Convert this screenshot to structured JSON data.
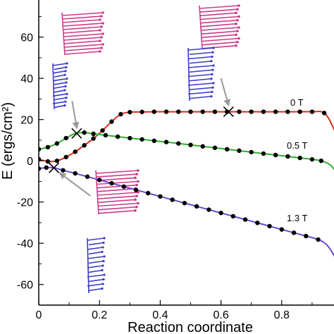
{
  "chart_data": {
    "type": "line",
    "xlabel": "Reaction coordinate",
    "ylabel": "E (ergs/cm²)",
    "xlim": [
      0,
      1.0
    ],
    "ylim": [
      -70,
      78
    ],
    "x_ticks": [
      "0",
      "0.2",
      "0.4",
      "0.6",
      "0.8"
    ],
    "y_ticks": [
      "-60",
      "-40",
      "-20",
      "0",
      "20",
      "40",
      "60"
    ],
    "grid": false,
    "legend": "inline labels",
    "series": [
      {
        "name": "0 T",
        "color": "#e0281e",
        "points": [
          [
            0.0,
            0.8
          ],
          [
            0.03,
            -0.3
          ],
          [
            0.06,
            0.0
          ],
          [
            0.09,
            1.8
          ],
          [
            0.12,
            4.4
          ],
          [
            0.15,
            7.5
          ],
          [
            0.18,
            10.8
          ],
          [
            0.21,
            14.7
          ],
          [
            0.24,
            19.0
          ],
          [
            0.27,
            22.6
          ],
          [
            0.3,
            23.6
          ],
          [
            0.34,
            23.7
          ],
          [
            0.38,
            23.8
          ],
          [
            0.42,
            23.8
          ],
          [
            0.46,
            23.8
          ],
          [
            0.5,
            23.8
          ],
          [
            0.54,
            23.8
          ],
          [
            0.58,
            23.8
          ],
          [
            0.62,
            23.8
          ],
          [
            0.66,
            23.8
          ],
          [
            0.7,
            23.8
          ],
          [
            0.74,
            23.8
          ],
          [
            0.78,
            23.8
          ],
          [
            0.82,
            23.8
          ],
          [
            0.86,
            23.8
          ],
          [
            0.9,
            23.8
          ],
          [
            0.94,
            23.2
          ],
          [
            0.97,
            16.0
          ],
          [
            1.0,
            5.0
          ]
        ],
        "markers_x": [
          0.0,
          0.03,
          0.06,
          0.09,
          0.12,
          0.15,
          0.18,
          0.21,
          0.24,
          0.27,
          0.3,
          0.34,
          0.38,
          0.42,
          0.46,
          0.5,
          0.54,
          0.58,
          0.62,
          0.66,
          0.7,
          0.74,
          0.78,
          0.82,
          0.86,
          0.9,
          0.94
        ]
      },
      {
        "name": "0.5 T",
        "color": "#2fae2f",
        "points": [
          [
            0.0,
            5.6
          ],
          [
            0.03,
            6.6
          ],
          [
            0.06,
            8.4
          ],
          [
            0.09,
            11.0
          ],
          [
            0.12,
            13.3
          ],
          [
            0.15,
            13.7
          ],
          [
            0.18,
            13.1
          ],
          [
            0.22,
            12.4
          ],
          [
            0.26,
            11.7
          ],
          [
            0.3,
            11.0
          ],
          [
            0.34,
            10.4
          ],
          [
            0.38,
            9.7
          ],
          [
            0.42,
            9.1
          ],
          [
            0.46,
            8.4
          ],
          [
            0.5,
            7.7
          ],
          [
            0.54,
            7.0
          ],
          [
            0.58,
            6.3
          ],
          [
            0.62,
            5.6
          ],
          [
            0.66,
            4.9
          ],
          [
            0.7,
            4.2
          ],
          [
            0.74,
            3.5
          ],
          [
            0.78,
            2.8
          ],
          [
            0.82,
            2.1
          ],
          [
            0.86,
            1.4
          ],
          [
            0.9,
            0.7
          ],
          [
            0.93,
            0.0
          ],
          [
            0.96,
            -2.0
          ],
          [
            0.98,
            -6.0
          ],
          [
            1.0,
            -13.0
          ]
        ],
        "markers_x": [
          0.0,
          0.03,
          0.06,
          0.09,
          0.15,
          0.18,
          0.22,
          0.26,
          0.3,
          0.34,
          0.38,
          0.42,
          0.46,
          0.5,
          0.54,
          0.58,
          0.62,
          0.66,
          0.7,
          0.74,
          0.78,
          0.82,
          0.86,
          0.9,
          0.93
        ]
      },
      {
        "name": "1.3 T",
        "color": "#6a4bd0",
        "points": [
          [
            0.0,
            -3.8
          ],
          [
            0.025,
            -3.3
          ],
          [
            0.05,
            -3.4
          ],
          [
            0.08,
            -4.6
          ],
          [
            0.12,
            -6.1
          ],
          [
            0.16,
            -7.7
          ],
          [
            0.2,
            -9.3
          ],
          [
            0.24,
            -10.9
          ],
          [
            0.28,
            -12.5
          ],
          [
            0.32,
            -14.1
          ],
          [
            0.36,
            -15.7
          ],
          [
            0.4,
            -17.3
          ],
          [
            0.44,
            -18.9
          ],
          [
            0.48,
            -20.5
          ],
          [
            0.52,
            -22.1
          ],
          [
            0.56,
            -23.7
          ],
          [
            0.6,
            -25.3
          ],
          [
            0.64,
            -26.9
          ],
          [
            0.68,
            -28.5
          ],
          [
            0.72,
            -30.1
          ],
          [
            0.76,
            -31.7
          ],
          [
            0.8,
            -33.3
          ],
          [
            0.84,
            -34.9
          ],
          [
            0.88,
            -36.5
          ],
          [
            0.92,
            -38.2
          ],
          [
            0.95,
            -41.0
          ],
          [
            0.98,
            -48.0
          ],
          [
            1.0,
            -55.0
          ]
        ],
        "markers_x": [
          0.0,
          0.025,
          0.08,
          0.12,
          0.16,
          0.2,
          0.24,
          0.28,
          0.32,
          0.36,
          0.4,
          0.44,
          0.48,
          0.52,
          0.56,
          0.6,
          0.64,
          0.68,
          0.72,
          0.76,
          0.8,
          0.84,
          0.88,
          0.92
        ]
      }
    ],
    "saddle_points": [
      {
        "x": 0.125,
        "y": 13.3
      },
      {
        "x": 0.625,
        "y": 23.8
      },
      {
        "x": 0.05,
        "y": -3.4
      }
    ],
    "arrows": [
      {
        "from": [
          0.11,
          29
        ],
        "to": [
          0.125,
          16
        ]
      },
      {
        "from": [
          0.6,
          40
        ],
        "to": [
          0.625,
          27
        ]
      },
      {
        "from": [
          0.17,
          -17
        ],
        "to": [
          0.07,
          -6
        ]
      }
    ],
    "insets": [
      {
        "position": "upper-left",
        "top_color": "#cc3a8c",
        "bottom_color": "#3a3ac8"
      },
      {
        "position": "upper-middle",
        "top_color": "#cc3a8c",
        "bottom_color": "#3a3ac8"
      },
      {
        "position": "lower-left",
        "top_color": "#cc3a8c",
        "bottom_color": "#3a3ac8"
      }
    ]
  }
}
